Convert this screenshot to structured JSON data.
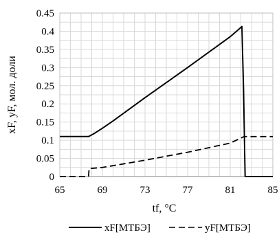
{
  "chart_data": {
    "type": "line",
    "title": "",
    "xlabel": "tf, °C",
    "ylabel": "xF, yF, мол. доли",
    "xlim": [
      65,
      85
    ],
    "ylim": [
      0,
      0.45
    ],
    "x_ticks": [
      "65",
      "69",
      "73",
      "77",
      "81",
      "85"
    ],
    "y_ticks": [
      "0",
      "0.05",
      "0.1",
      "0.15",
      "0.2",
      "0.25",
      "0.3",
      "0.35",
      "0.4",
      "0.45"
    ],
    "grid": true,
    "legend_position": "bottom",
    "series": [
      {
        "name": "xF[МТБЭ]",
        "style": "solid",
        "color": "#000000",
        "points": [
          [
            65,
            0.11
          ],
          [
            67.7,
            0.11
          ],
          [
            68.2,
            0.118
          ],
          [
            69,
            0.133
          ],
          [
            70,
            0.153
          ],
          [
            73,
            0.217
          ],
          [
            77,
            0.3
          ],
          [
            81,
            0.385
          ],
          [
            81.8,
            0.405
          ],
          [
            82.1,
            0.413
          ],
          [
            82.25,
            0.24
          ],
          [
            82.4,
            0
          ],
          [
            85,
            0
          ]
        ]
      },
      {
        "name": "yF[МТБЭ]",
        "style": "dashed",
        "color": "#000000",
        "points": [
          [
            65,
            0
          ],
          [
            67.7,
            0
          ],
          [
            67.75,
            0.022
          ],
          [
            69,
            0.025
          ],
          [
            73,
            0.045
          ],
          [
            77,
            0.067
          ],
          [
            81,
            0.092
          ],
          [
            82.3,
            0.11
          ],
          [
            85,
            0.11
          ]
        ]
      }
    ]
  }
}
